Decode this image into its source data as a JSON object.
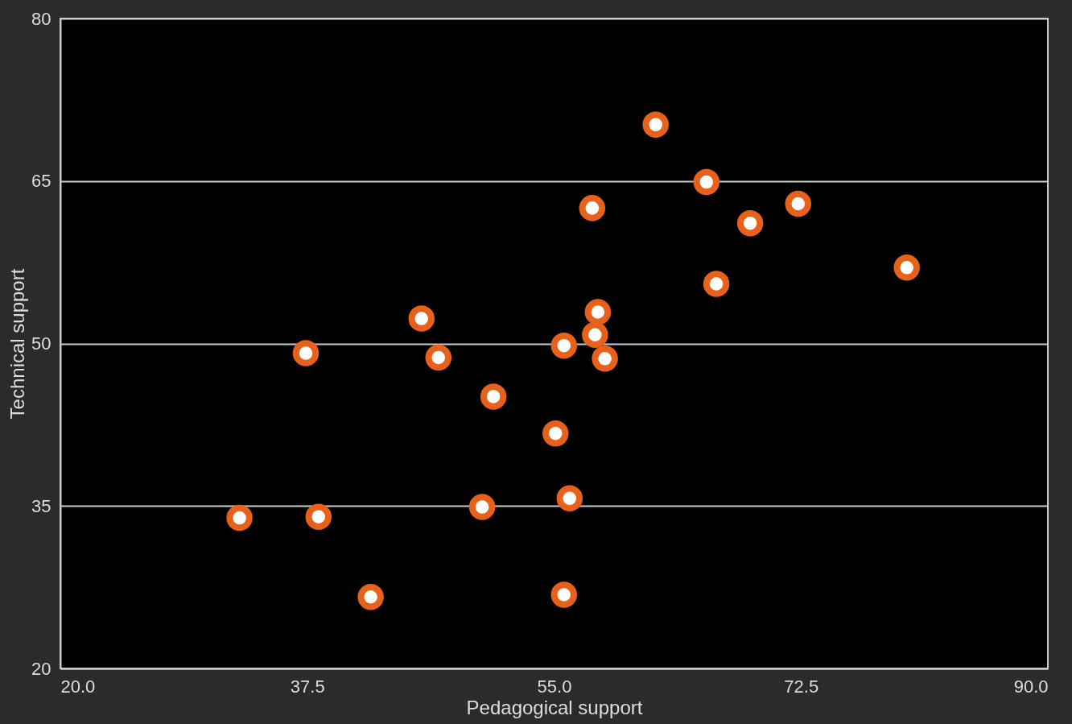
{
  "chart_data": {
    "type": "scatter",
    "xlabel": "Pedagogical support",
    "ylabel": "Technical support",
    "x": [
      62.2,
      65.8,
      57.7,
      72.3,
      68.9,
      80.0,
      66.5,
      58.1,
      45.6,
      57.9,
      55.7,
      37.4,
      46.8,
      58.6,
      50.7,
      55.1,
      56.1,
      49.9,
      32.7,
      38.3,
      42.0,
      55.7
    ],
    "series": [
      {
        "color": "#e8611a",
        "values": [
          70.2,
          64.9,
          62.5,
          62.9,
          61.1,
          57.0,
          55.5,
          52.9,
          52.3,
          50.8,
          49.8,
          49.1,
          48.7,
          48.6,
          45.1,
          41.7,
          35.7,
          34.9,
          33.9,
          34.0,
          26.6,
          26.8
        ]
      }
    ],
    "xlim": [
      20,
      90
    ],
    "ylim": [
      20,
      80
    ],
    "xticks": [
      {
        "value": 20,
        "label": "20.0"
      },
      {
        "value": 37.5,
        "label": "37.5"
      },
      {
        "value": 55,
        "label": "55.0"
      },
      {
        "value": 72.5,
        "label": "72.5"
      },
      {
        "value": 90,
        "label": "90.0"
      }
    ],
    "yticks": [
      20,
      35,
      50,
      65,
      80
    ],
    "grid": "y",
    "marker": "circle"
  }
}
